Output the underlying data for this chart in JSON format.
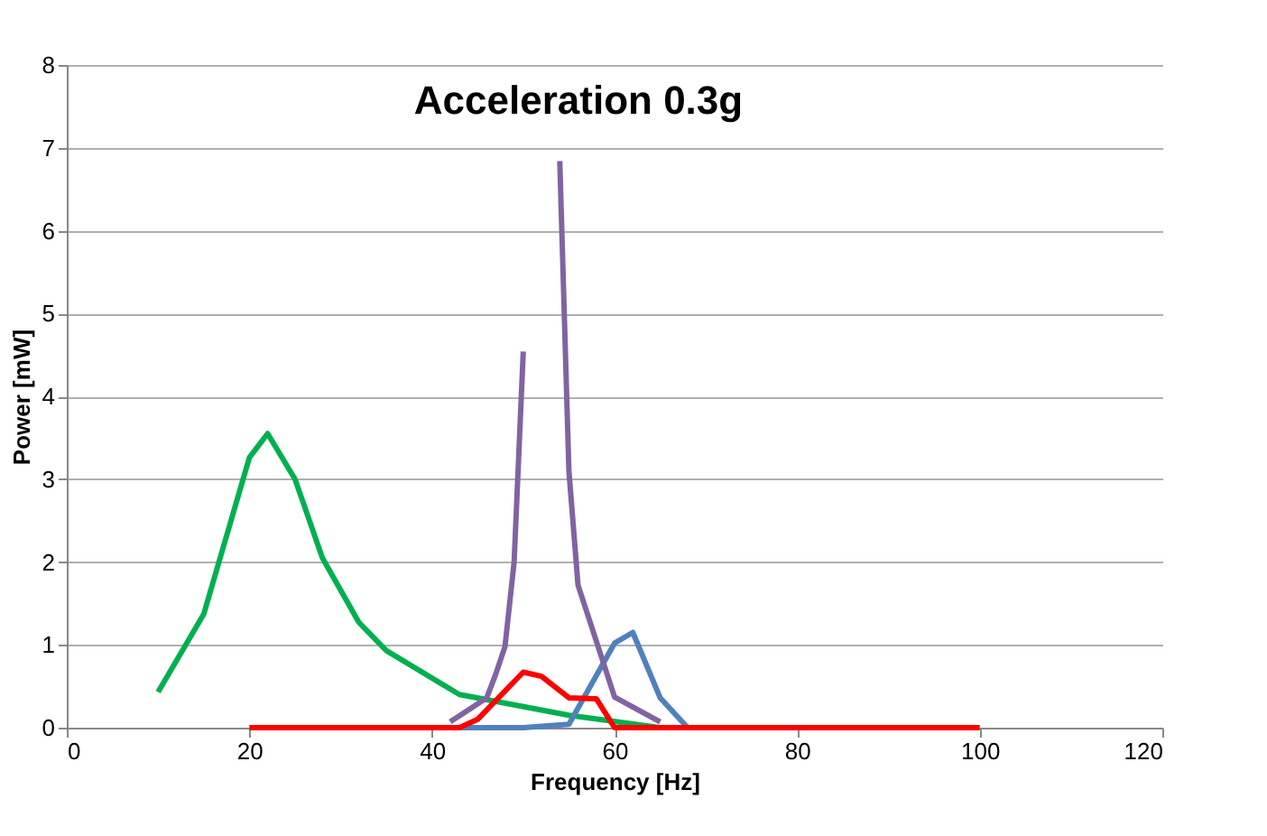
{
  "chart_data": {
    "type": "line",
    "title": "Acceleration 0.3g",
    "xlabel": "Frequency [Hz]",
    "ylabel": "Power [mW]",
    "xlim": [
      0,
      120
    ],
    "xticks": [
      0,
      20,
      40,
      60,
      80,
      100,
      120
    ],
    "ylim": [
      0,
      8
    ],
    "yticks": [
      0,
      1,
      2,
      3,
      4,
      5,
      6,
      7,
      8
    ],
    "grid": "y",
    "legend": false,
    "marker": "none",
    "line_style": "solid",
    "series": [
      {
        "color": "#00b050",
        "x": [
          10,
          15,
          20,
          22,
          25,
          28,
          32,
          35,
          43,
          55,
          65
        ],
        "values": [
          0.43,
          1.37,
          3.26,
          3.55,
          3.0,
          2.05,
          1.27,
          0.93,
          0.4,
          0.15,
          0.0
        ]
      },
      {
        "color": "#4f81bd",
        "x": [
          43,
          50,
          55,
          60,
          62,
          65,
          68
        ],
        "values": [
          0,
          0,
          0.04,
          1.02,
          1.15,
          0.36,
          0
        ]
      },
      {
        "color": "#8064a2",
        "x": [
          42,
          46,
          47,
          48,
          49,
          50,
          52,
          54,
          55,
          56,
          60,
          65
        ],
        "values": [
          0.07,
          0.36,
          0.65,
          0.98,
          2.0,
          4.54,
          null,
          6.84,
          3.1,
          1.72,
          0.37,
          0.07
        ]
      },
      {
        "color": "#ff0000",
        "x": [
          20,
          43,
          45,
          50,
          52,
          55,
          58,
          60,
          100
        ],
        "values": [
          0,
          0,
          0.1,
          0.67,
          0.62,
          0.36,
          0.35,
          0,
          0
        ]
      }
    ]
  }
}
